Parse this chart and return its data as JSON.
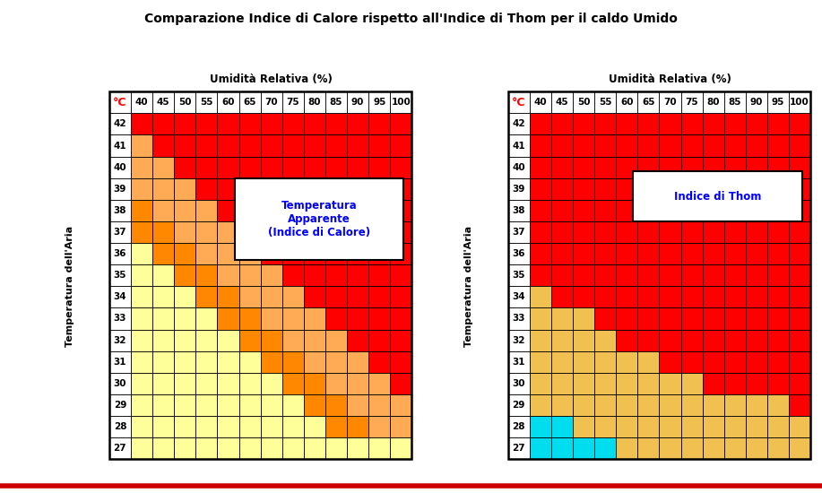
{
  "title": "Comparazione Indice di Calore rispetto all'Indice di Thom per il caldo Umido",
  "temps": [
    42,
    41,
    40,
    39,
    38,
    37,
    36,
    35,
    34,
    33,
    32,
    31,
    30,
    29,
    28,
    27
  ],
  "humidities": [
    40,
    45,
    50,
    55,
    60,
    65,
    70,
    75,
    80,
    85,
    90,
    95,
    100
  ],
  "colors": {
    "R": "#FF0000",
    "O": "#FF8800",
    "LO": "#FFAA55",
    "Y": "#FFFF99",
    "G": "#F0C050",
    "C": "#00DDEE"
  },
  "left_grid": [
    [
      "R",
      "R",
      "R",
      "R",
      "R",
      "R",
      "R",
      "R",
      "R",
      "R",
      "R",
      "R",
      "R"
    ],
    [
      "LO",
      "R",
      "R",
      "R",
      "R",
      "R",
      "R",
      "R",
      "R",
      "R",
      "R",
      "R",
      "R"
    ],
    [
      "LO",
      "LO",
      "R",
      "R",
      "R",
      "R",
      "R",
      "R",
      "R",
      "R",
      "R",
      "R",
      "R"
    ],
    [
      "LO",
      "LO",
      "LO",
      "R",
      "R",
      "R",
      "R",
      "R",
      "R",
      "R",
      "R",
      "R",
      "R"
    ],
    [
      "O",
      "LO",
      "LO",
      "LO",
      "R",
      "R",
      "R",
      "R",
      "R",
      "R",
      "R",
      "R",
      "R"
    ],
    [
      "O",
      "O",
      "LO",
      "LO",
      "LO",
      "R",
      "R",
      "R",
      "R",
      "R",
      "R",
      "R",
      "R"
    ],
    [
      "Y",
      "O",
      "O",
      "LO",
      "LO",
      "LO",
      "R",
      "R",
      "R",
      "R",
      "R",
      "R",
      "R"
    ],
    [
      "Y",
      "Y",
      "O",
      "O",
      "LO",
      "LO",
      "LO",
      "R",
      "R",
      "R",
      "R",
      "R",
      "R"
    ],
    [
      "Y",
      "Y",
      "Y",
      "O",
      "O",
      "LO",
      "LO",
      "LO",
      "R",
      "R",
      "R",
      "R",
      "R"
    ],
    [
      "Y",
      "Y",
      "Y",
      "Y",
      "O",
      "O",
      "LO",
      "LO",
      "LO",
      "R",
      "R",
      "R",
      "R"
    ],
    [
      "Y",
      "Y",
      "Y",
      "Y",
      "Y",
      "O",
      "O",
      "LO",
      "LO",
      "LO",
      "R",
      "R",
      "R"
    ],
    [
      "Y",
      "Y",
      "Y",
      "Y",
      "Y",
      "Y",
      "O",
      "O",
      "LO",
      "LO",
      "LO",
      "R",
      "R"
    ],
    [
      "Y",
      "Y",
      "Y",
      "Y",
      "Y",
      "Y",
      "Y",
      "O",
      "O",
      "LO",
      "LO",
      "LO",
      "R"
    ],
    [
      "Y",
      "Y",
      "Y",
      "Y",
      "Y",
      "Y",
      "Y",
      "Y",
      "O",
      "O",
      "LO",
      "LO",
      "LO"
    ],
    [
      "Y",
      "Y",
      "Y",
      "Y",
      "Y",
      "Y",
      "Y",
      "Y",
      "Y",
      "O",
      "O",
      "LO",
      "LO"
    ],
    [
      "Y",
      "Y",
      "Y",
      "Y",
      "Y",
      "Y",
      "Y",
      "Y",
      "Y",
      "Y",
      "Y",
      "Y",
      "Y"
    ]
  ],
  "right_grid": [
    [
      "R",
      "R",
      "R",
      "R",
      "R",
      "R",
      "R",
      "R",
      "R",
      "R",
      "R",
      "R",
      "R"
    ],
    [
      "R",
      "R",
      "R",
      "R",
      "R",
      "R",
      "R",
      "R",
      "R",
      "R",
      "R",
      "R",
      "R"
    ],
    [
      "R",
      "R",
      "R",
      "R",
      "R",
      "R",
      "R",
      "R",
      "R",
      "R",
      "R",
      "R",
      "R"
    ],
    [
      "R",
      "R",
      "R",
      "R",
      "R",
      "R",
      "R",
      "R",
      "R",
      "R",
      "R",
      "R",
      "R"
    ],
    [
      "R",
      "R",
      "R",
      "R",
      "R",
      "R",
      "R",
      "R",
      "R",
      "R",
      "R",
      "R",
      "R"
    ],
    [
      "R",
      "R",
      "R",
      "R",
      "R",
      "R",
      "R",
      "R",
      "R",
      "R",
      "R",
      "R",
      "R"
    ],
    [
      "R",
      "R",
      "R",
      "R",
      "R",
      "R",
      "R",
      "R",
      "R",
      "R",
      "R",
      "R",
      "R"
    ],
    [
      "R",
      "R",
      "R",
      "R",
      "R",
      "R",
      "R",
      "R",
      "R",
      "R",
      "R",
      "R",
      "R"
    ],
    [
      "G",
      "R",
      "R",
      "R",
      "R",
      "R",
      "R",
      "R",
      "R",
      "R",
      "R",
      "R",
      "R"
    ],
    [
      "G",
      "G",
      "G",
      "R",
      "R",
      "R",
      "R",
      "R",
      "R",
      "R",
      "R",
      "R",
      "R"
    ],
    [
      "G",
      "G",
      "G",
      "G",
      "R",
      "R",
      "R",
      "R",
      "R",
      "R",
      "R",
      "R",
      "R"
    ],
    [
      "G",
      "G",
      "G",
      "G",
      "G",
      "G",
      "R",
      "R",
      "R",
      "R",
      "R",
      "R",
      "R"
    ],
    [
      "G",
      "G",
      "G",
      "G",
      "G",
      "G",
      "G",
      "G",
      "R",
      "R",
      "R",
      "R",
      "R"
    ],
    [
      "G",
      "G",
      "G",
      "G",
      "G",
      "G",
      "G",
      "G",
      "G",
      "G",
      "G",
      "G",
      "R"
    ],
    [
      "C",
      "C",
      "G",
      "G",
      "G",
      "G",
      "G",
      "G",
      "G",
      "G",
      "G",
      "G",
      "G"
    ],
    [
      "C",
      "C",
      "C",
      "C",
      "G",
      "G",
      "G",
      "G",
      "G",
      "G",
      "G",
      "G",
      "G"
    ]
  ],
  "left_label": "Temperatura\nApparente\n(Indice di Calore)",
  "right_label": "Indice di Thom",
  "humidity_label": "Umidità Relativa (%)",
  "temp_aria_label": "Temperatura dell'Aria",
  "deg_c_label": "°C",
  "title_fontsize": 10,
  "cell_fontsize": 7.5,
  "header_fontsize": 8.5,
  "ylabel_fontsize": 8,
  "legend_fontsize": 8.5,
  "bg_color": "#FFFFFF",
  "bottom_line_color": "#CC0000"
}
